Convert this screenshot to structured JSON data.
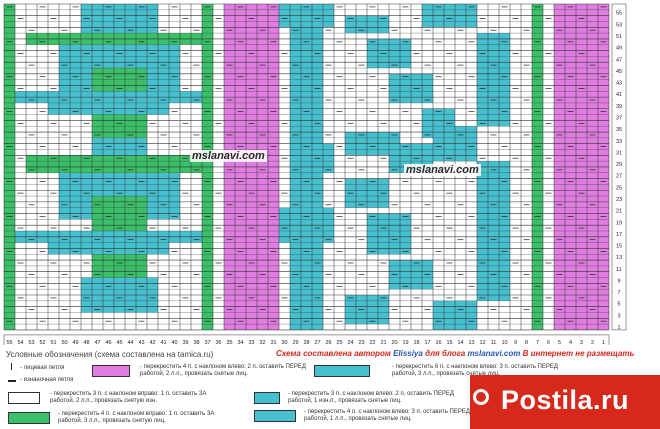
{
  "chart": {
    "watermark": "mslanavi.com",
    "row_labels": [
      "1",
      "3",
      "5",
      "7",
      "9",
      "11",
      "13",
      "15",
      "17",
      "19",
      "21",
      "23",
      "25",
      "27",
      "29",
      "31",
      "33",
      "35",
      "37",
      "39",
      "41",
      "43",
      "45",
      "47",
      "49",
      "51",
      "53",
      "55"
    ],
    "col_labels": [
      "55",
      "54",
      "53",
      "52",
      "51",
      "50",
      "49",
      "48",
      "47",
      "46",
      "45",
      "44",
      "43",
      "42",
      "41",
      "40",
      "39",
      "38",
      "37",
      "36",
      "35",
      "34",
      "33",
      "32",
      "31",
      "30",
      "29",
      "28",
      "27",
      "26",
      "25",
      "24",
      "23",
      "22",
      "21",
      "20",
      "19",
      "18",
      "17",
      "16",
      "15",
      "14",
      "13",
      "12",
      "11",
      "10",
      "9",
      "8",
      "7",
      "6",
      "5",
      "4",
      "3",
      "2",
      "1"
    ],
    "colors": {
      "green": "#3bbf68",
      "teal": "#46c0cf",
      "pink": "#e07de0",
      "white": "#ffffff",
      "grid": "#333333",
      "sym": "#222222"
    }
  },
  "legend": {
    "title": "Условные обозначения (схема составлена на tamica.ru)",
    "author_prefix": "Схема составлена автором",
    "author_name": "Elissiya",
    "author_mid": "для блога",
    "author_site": "mslanavi.com",
    "author_suffix": "В интернет не размещать",
    "knit": "- лицевая петля",
    "purl": "- изнаночная петля",
    "cross4_left": "- перекрестить 4 п. с наклоном влево: 2 п. оставить ПЕРЕД работой, 2 л.п., провязать снятые лиц.",
    "cross6_left": "- перекрестить 6 п. с наклоном влево: 3 п. оставить ПЕРЕД работой, 3 л.п., провязать снятые лиц.",
    "cross3_right": "- перекрестить 3 п. с наклоном вправо: 1 п. оставить ЗА работой, 2 л.п., провязать снятую изн.",
    "cross3_left": "- перекрестить 3 п. с наклоном влево: 2 п. оставить ПЕРЕД работой, 1 изн.п., провязать снятые лиц.",
    "cross4_right": "- перекрестить 4 п. с наклоном вправо: 1 п. оставить ЗА работой, 3 л.п., провязать снятую лиц.",
    "cross4_left_b": "- перекрестить 4 п. с наклоном влево: 3 п. оставить ПЕРЕД работой, 1 л.п., провязать снятые лиц."
  },
  "brand": {
    "name": "Postila.ru",
    "icon": "pin-icon"
  }
}
